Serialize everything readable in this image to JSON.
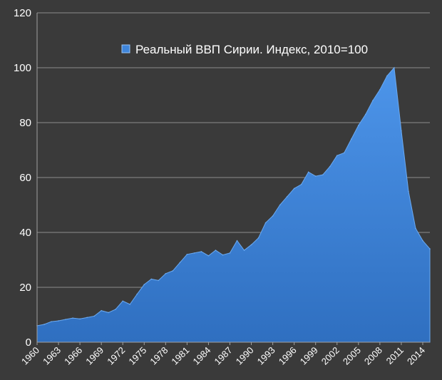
{
  "chart_data": {
    "type": "area",
    "title": "",
    "xlabel": "",
    "ylabel": "",
    "ylim": [
      0,
      120
    ],
    "y_ticks": [
      0,
      20,
      40,
      60,
      80,
      100,
      120
    ],
    "x_tick_labels": [
      "1960",
      "1963",
      "1966",
      "1969",
      "1972",
      "1975",
      "1978",
      "1981",
      "1984",
      "1987",
      "1990",
      "1993",
      "1996",
      "1999",
      "2002",
      "2005",
      "2008",
      "2011",
      "2014"
    ],
    "grid": true,
    "legend": {
      "position": "top-center"
    },
    "series": [
      {
        "name": "Реальный ВВП Сирии. Индекс, 2010=100",
        "color": "#3f86dc",
        "x": [
          1960,
          1961,
          1962,
          1963,
          1964,
          1965,
          1966,
          1967,
          1968,
          1969,
          1970,
          1971,
          1972,
          1973,
          1974,
          1975,
          1976,
          1977,
          1978,
          1979,
          1980,
          1981,
          1982,
          1983,
          1984,
          1985,
          1986,
          1987,
          1988,
          1989,
          1990,
          1991,
          1992,
          1993,
          1994,
          1995,
          1996,
          1997,
          1998,
          1999,
          2000,
          2001,
          2002,
          2003,
          2004,
          2005,
          2006,
          2007,
          2008,
          2009,
          2010,
          2011,
          2012,
          2013,
          2014,
          2015
        ],
        "values": [
          6,
          6.5,
          7.5,
          7.8,
          8.3,
          8.8,
          8.5,
          9,
          9.5,
          11.5,
          10.8,
          12,
          15,
          13.8,
          17.5,
          21,
          23,
          22.5,
          25,
          26,
          29,
          32,
          32.5,
          33,
          31.5,
          33.5,
          31.8,
          32.5,
          37,
          33.5,
          35.5,
          38,
          43.5,
          46,
          50,
          53,
          56,
          57.5,
          62,
          60.5,
          61,
          64,
          68,
          69,
          74,
          79,
          83,
          88,
          92,
          97,
          100,
          77,
          55,
          41.5,
          37,
          34
        ]
      }
    ]
  }
}
